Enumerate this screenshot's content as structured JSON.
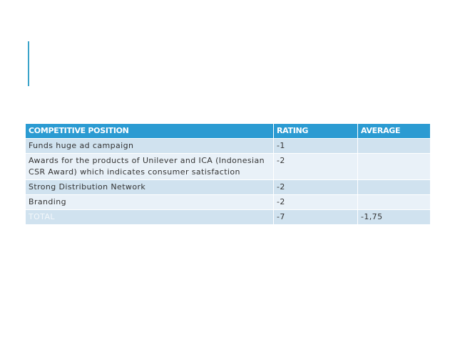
{
  "table": {
    "header": [
      "COMPETITIVE POSITION",
      "RATING",
      "AVERAGE"
    ],
    "rows": [
      {
        "item": "Funds huge ad campaign",
        "rating": "-1"
      },
      {
        "item": "Awards for the products of Unilever and ICA (Indonesian CSR Award) which indicates consumer satisfaction",
        "rating": "-2"
      },
      {
        "item": "Strong Distribution Network",
        "rating": "-2"
      },
      {
        "item": "Branding",
        "rating": "-2"
      },
      {
        "item": "TOTAL",
        "rating": "-7",
        "average": "-1,75"
      }
    ]
  }
}
